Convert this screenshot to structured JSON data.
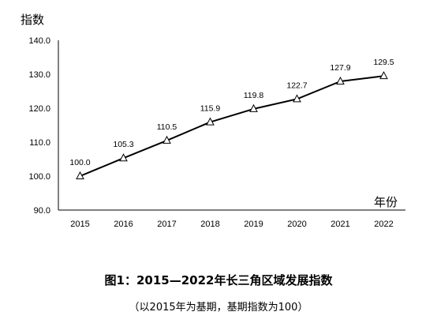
{
  "chart_data": {
    "type": "line",
    "ylabel": "指数",
    "xlabel": "年份",
    "categories": [
      "2015",
      "2016",
      "2017",
      "2018",
      "2019",
      "2020",
      "2021",
      "2022"
    ],
    "series": [
      {
        "values": [
          100.0,
          105.3,
          110.5,
          115.9,
          119.8,
          122.7,
          127.9,
          129.5
        ]
      }
    ],
    "data_labels": [
      "100.0",
      "105.3",
      "110.5",
      "115.9",
      "119.8",
      "122.7",
      "127.9",
      "129.5"
    ],
    "yticks": [
      "90.0",
      "100.0",
      "110.0",
      "120.0",
      "130.0",
      "140.0"
    ],
    "ylim": [
      90,
      140
    ],
    "marker": "triangle",
    "grid": false,
    "colors": {
      "line": "#000000",
      "marker_fill": "#ffffff",
      "axis": "#000000"
    }
  },
  "caption": {
    "title": "图1：2015—2022年长三角区域发展指数",
    "subtitle": "（以2015年为基期，基期指数为100）"
  }
}
